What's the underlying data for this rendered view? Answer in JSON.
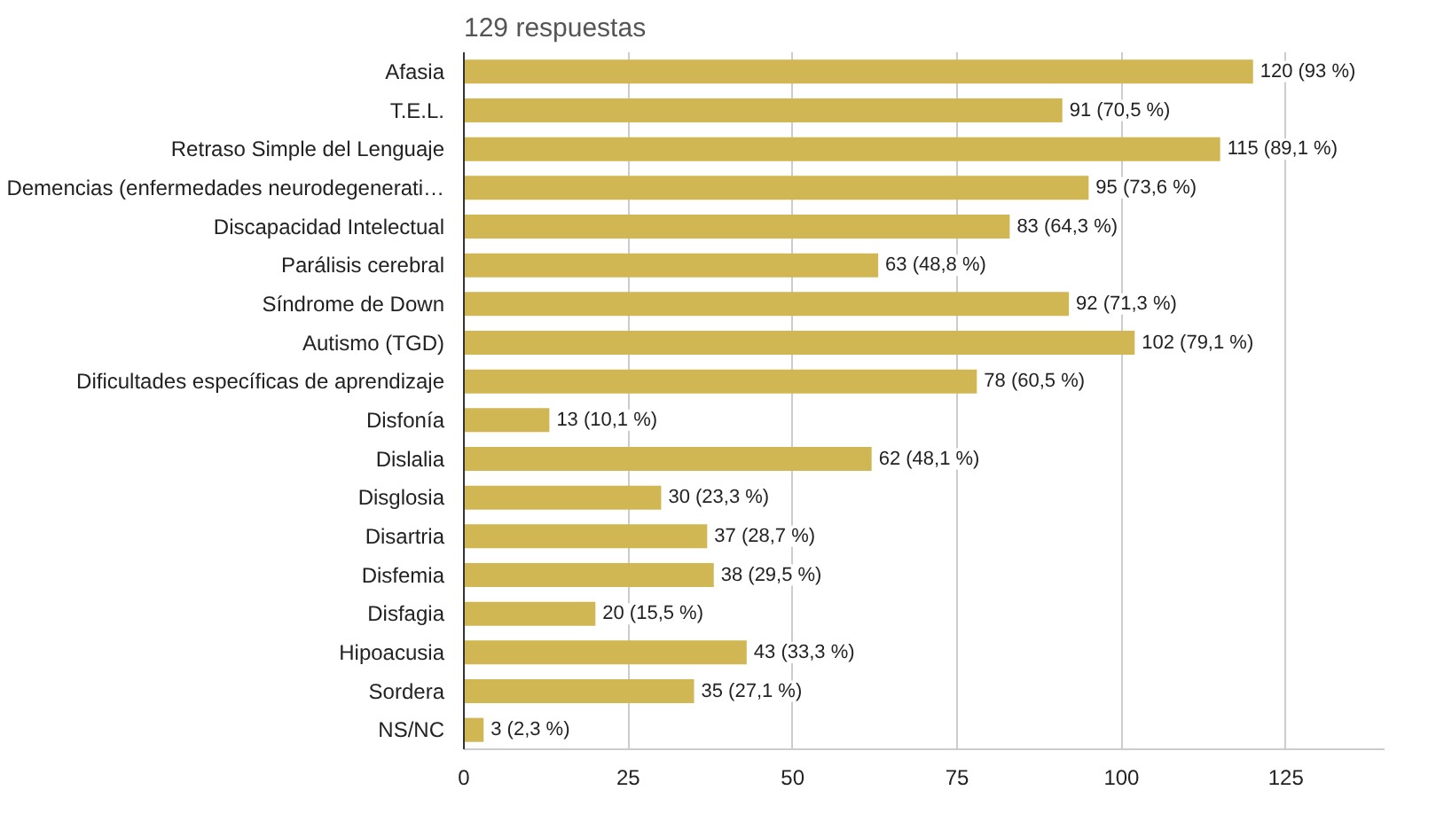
{
  "chart_data": {
    "type": "bar",
    "orientation": "horizontal",
    "title": "129 respuestas",
    "categories": [
      "Afasia",
      "T.E.L.",
      "Retraso Simple del Lenguaje",
      "Demencias (enfermedades neurodegenerati…",
      "Discapacidad Intelectual",
      "Parálisis cerebral",
      "Síndrome de Down",
      "Autismo (TGD)",
      "Dificultades específicas de aprendizaje",
      "Disfonía",
      "Dislalia",
      "Disglosia",
      "Disartria",
      "Disfemia",
      "Disfagia",
      "Hipoacusia",
      "Sordera",
      "NS/NC"
    ],
    "values": [
      120,
      91,
      115,
      95,
      83,
      63,
      92,
      102,
      78,
      13,
      62,
      30,
      37,
      38,
      20,
      43,
      35,
      3
    ],
    "value_labels": [
      "120 (93 %)",
      "91 (70,5 %)",
      "115 (89,1 %)",
      "95 (73,6 %)",
      "83 (64,3 %)",
      "63 (48,8 %)",
      "92 (71,3 %)",
      "102 (79,1 %)",
      "78 (60,5 %)",
      "13 (10,1 %)",
      "62 (48,1 %)",
      "30 (23,3 %)",
      "37 (28,7 %)",
      "38 (29,5 %)",
      "20 (15,5 %)",
      "43 (33,3 %)",
      "35 (27,1 %)",
      "3 (2,3 %)"
    ],
    "color": "#d1b654",
    "xlim": [
      0,
      140
    ],
    "xticks": [
      0,
      25,
      50,
      75,
      100,
      125
    ],
    "grid": "x"
  }
}
